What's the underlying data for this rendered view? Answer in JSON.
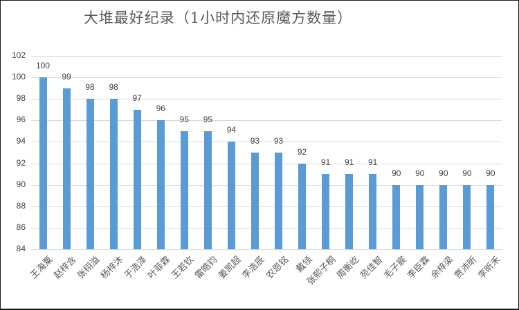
{
  "chart_data": {
    "type": "bar",
    "title": "大堆最好纪录（1小时内还原魔方数量）",
    "xlabel": "",
    "ylabel": "",
    "ylim": [
      84,
      102
    ],
    "yticks": [
      84,
      86,
      88,
      90,
      92,
      94,
      96,
      98,
      100,
      102
    ],
    "grid": true,
    "legend": null,
    "bar_color": "#5b9bd5",
    "categories": [
      "王海粟",
      "赵梓含",
      "张栩溢",
      "杨梓沐",
      "于浩泽",
      "叶菲霖",
      "王若钦",
      "雷皓钧",
      "姜凯超",
      "李浩辰",
      "农恩铭",
      "戴领",
      "张熙子桐",
      "周衡屹",
      "苑佳智",
      "毛子宸",
      "李臣霖",
      "余梓梁",
      "贾沛昕",
      "李昕禾"
    ],
    "values": [
      100,
      99,
      98,
      98,
      97,
      96,
      95,
      95,
      94,
      93,
      93,
      92,
      91,
      91,
      91,
      90,
      90,
      90,
      90,
      90
    ]
  }
}
